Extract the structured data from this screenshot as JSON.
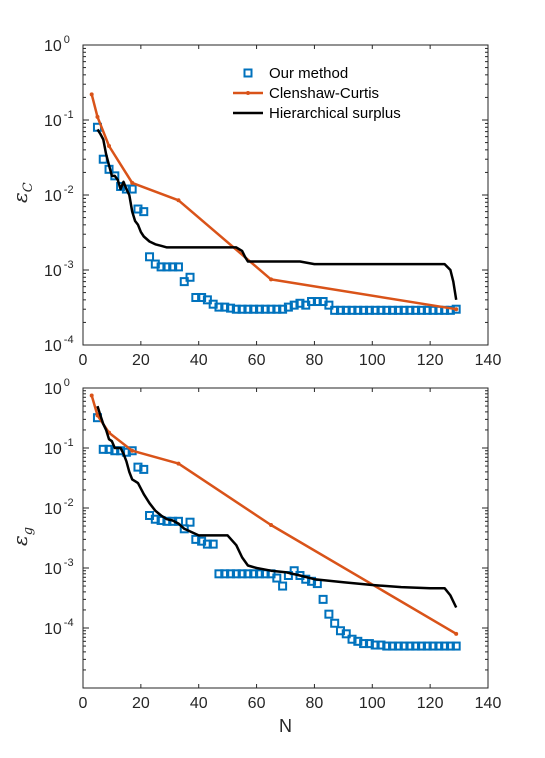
{
  "colors": {
    "our_method": "#0072BD",
    "clenshaw_curtis": "#D95319",
    "hierarchical_surplus": "#000000"
  },
  "chart_data": [
    {
      "type": "line",
      "scale": "semilogy",
      "xlabel": "",
      "ylabel": "ε",
      "ylabel_sub": "C",
      "xlim": [
        0,
        140
      ],
      "ylim": [
        0.0001,
        1
      ],
      "xticks": [
        0,
        20,
        40,
        60,
        80,
        100,
        120,
        140
      ],
      "yticks": [
        {
          "value": 1,
          "base": "10",
          "exp": "0"
        },
        {
          "value": 0.1,
          "base": "10",
          "exp": "-1"
        },
        {
          "value": 0.01,
          "base": "10",
          "exp": "-2"
        },
        {
          "value": 0.001,
          "base": "10",
          "exp": "-3"
        },
        {
          "value": 0.0001,
          "base": "10",
          "exp": "-4"
        }
      ],
      "legend": {
        "placement": "top-right",
        "entries": [
          "Our method",
          "Clenshaw-Curtis",
          "Hierarchical surplus"
        ]
      },
      "series": [
        {
          "name": "Our method",
          "style": "squares",
          "x": [
            5,
            7,
            9,
            11,
            13,
            15,
            17,
            19,
            21,
            23,
            25,
            27,
            29,
            31,
            33,
            35,
            37,
            39,
            41,
            43,
            45,
            47,
            49,
            51,
            53,
            55,
            57,
            59,
            61,
            63,
            65,
            67,
            69,
            71,
            73,
            75,
            77,
            79,
            81,
            83,
            85,
            87,
            89,
            91,
            93,
            95,
            97,
            99,
            101,
            103,
            105,
            107,
            109,
            111,
            113,
            115,
            117,
            119,
            121,
            123,
            125,
            127,
            129
          ],
          "y": [
            0.08,
            0.03,
            0.022,
            0.018,
            0.013,
            0.012,
            0.012,
            0.0065,
            0.006,
            0.0015,
            0.0012,
            0.0011,
            0.0011,
            0.0011,
            0.0011,
            0.0007,
            0.0008,
            0.00043,
            0.00043,
            0.0004,
            0.00035,
            0.00032,
            0.00032,
            0.00031,
            0.0003,
            0.0003,
            0.0003,
            0.0003,
            0.0003,
            0.0003,
            0.0003,
            0.0003,
            0.0003,
            0.00032,
            0.00034,
            0.00036,
            0.00034,
            0.00038,
            0.00038,
            0.00038,
            0.00034,
            0.00029,
            0.00029,
            0.00029,
            0.00029,
            0.00029,
            0.00029,
            0.00029,
            0.00029,
            0.00029,
            0.00029,
            0.00029,
            0.00029,
            0.00029,
            0.00029,
            0.00029,
            0.00029,
            0.00029,
            0.00029,
            0.00029,
            0.00029,
            0.00029,
            0.0003
          ]
        },
        {
          "name": "Clenshaw-Curtis",
          "style": "line-dots",
          "x": [
            3,
            5,
            9,
            17,
            33,
            65,
            129
          ],
          "y": [
            0.22,
            0.11,
            0.045,
            0.0145,
            0.0085,
            0.00075,
            0.0003
          ]
        },
        {
          "name": "Hierarchical surplus",
          "style": "line",
          "x": [
            5,
            6,
            7,
            8,
            9,
            10,
            11,
            12,
            13,
            14,
            15,
            16,
            17,
            18,
            19,
            20,
            21,
            23,
            25,
            27,
            29,
            31,
            33,
            35,
            40,
            45,
            50,
            53,
            55,
            56,
            57,
            60,
            65,
            70,
            75,
            80,
            90,
            100,
            110,
            120,
            125,
            127,
            128,
            129
          ],
          "y": [
            0.075,
            0.065,
            0.055,
            0.035,
            0.025,
            0.018,
            0.018,
            0.016,
            0.012,
            0.015,
            0.012,
            0.01,
            0.006,
            0.0045,
            0.004,
            0.0032,
            0.0028,
            0.0024,
            0.0022,
            0.0021,
            0.002,
            0.002,
            0.002,
            0.002,
            0.002,
            0.002,
            0.002,
            0.002,
            0.0018,
            0.0015,
            0.0013,
            0.0013,
            0.0013,
            0.0013,
            0.0013,
            0.0012,
            0.0012,
            0.0012,
            0.0012,
            0.0012,
            0.0012,
            0.001,
            0.0007,
            0.0004
          ]
        }
      ]
    },
    {
      "type": "line",
      "scale": "semilogy",
      "xlabel": "N",
      "ylabel": "ε",
      "ylabel_sub": "g",
      "xlim": [
        0,
        140
      ],
      "ylim": [
        1e-05,
        1
      ],
      "xticks": [
        0,
        20,
        40,
        60,
        80,
        100,
        120,
        140
      ],
      "yticks": [
        {
          "value": 1,
          "base": "10",
          "exp": "0"
        },
        {
          "value": 0.1,
          "base": "10",
          "exp": "-1"
        },
        {
          "value": 0.01,
          "base": "10",
          "exp": "-2"
        },
        {
          "value": 0.001,
          "base": "10",
          "exp": "-3"
        },
        {
          "value": 0.0001,
          "base": "10",
          "exp": "-4"
        }
      ],
      "series": [
        {
          "name": "Our method",
          "style": "squares",
          "x": [
            5,
            7,
            9,
            11,
            13,
            15,
            17,
            19,
            21,
            23,
            25,
            27,
            29,
            31,
            33,
            35,
            37,
            39,
            41,
            43,
            45,
            47,
            49,
            51,
            53,
            55,
            57,
            59,
            61,
            63,
            65,
            67,
            69,
            71,
            73,
            75,
            77,
            79,
            81,
            83,
            85,
            87,
            89,
            91,
            93,
            95,
            97,
            99,
            101,
            103,
            105,
            107,
            109,
            111,
            113,
            115,
            117,
            119,
            121,
            123,
            125,
            127,
            129
          ],
          "y": [
            0.32,
            0.095,
            0.095,
            0.09,
            0.09,
            0.085,
            0.09,
            0.048,
            0.044,
            0.0075,
            0.0065,
            0.0062,
            0.006,
            0.006,
            0.006,
            0.0045,
            0.0058,
            0.003,
            0.0028,
            0.0025,
            0.0025,
            0.0008,
            0.0008,
            0.0008,
            0.0008,
            0.0008,
            0.0008,
            0.0008,
            0.0008,
            0.0008,
            0.0008,
            0.00068,
            0.0005,
            0.00075,
            0.0009,
            0.00075,
            0.00065,
            0.0006,
            0.00055,
            0.0003,
            0.00017,
            0.00012,
            9e-05,
            8e-05,
            6.5e-05,
            6e-05,
            5.5e-05,
            5.5e-05,
            5.2e-05,
            5.2e-05,
            5e-05,
            5e-05,
            5e-05,
            5e-05,
            5e-05,
            5e-05,
            5e-05,
            5e-05,
            5e-05,
            5e-05,
            5e-05,
            5e-05,
            5e-05
          ]
        },
        {
          "name": "Clenshaw-Curtis",
          "style": "line-dots",
          "x": [
            3,
            5,
            9,
            17,
            33,
            65,
            129
          ],
          "y": [
            0.75,
            0.35,
            0.18,
            0.09,
            0.055,
            0.0052,
            8e-05
          ]
        },
        {
          "name": "Hierarchical surplus",
          "style": "line",
          "x": [
            5,
            6,
            7,
            8,
            9,
            10,
            11,
            13,
            14,
            15,
            16,
            17,
            18,
            19,
            21,
            23,
            25,
            27,
            29,
            31,
            33,
            35,
            40,
            45,
            50,
            53,
            55,
            57,
            60,
            65,
            70,
            75,
            80,
            90,
            100,
            110,
            120,
            125,
            127,
            129
          ],
          "y": [
            0.5,
            0.35,
            0.25,
            0.2,
            0.14,
            0.13,
            0.1,
            0.1,
            0.08,
            0.06,
            0.04,
            0.03,
            0.028,
            0.026,
            0.017,
            0.012,
            0.009,
            0.0075,
            0.0065,
            0.0062,
            0.0055,
            0.0045,
            0.0035,
            0.0035,
            0.0035,
            0.0024,
            0.0015,
            0.0011,
            0.001,
            0.0009,
            0.00085,
            0.00075,
            0.00065,
            0.00058,
            0.00052,
            0.00048,
            0.00046,
            0.00046,
            0.00035,
            0.00022
          ]
        }
      ]
    }
  ]
}
